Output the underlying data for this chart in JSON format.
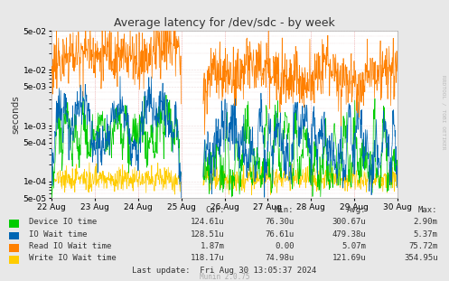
{
  "title": "Average latency for /dev/sdc - by week",
  "ylabel": "seconds",
  "watermark": "RRDTOOL / TOBI OETIKER",
  "munin_version": "Munin 2.0.75",
  "fig_bg_color": "#e8e8e8",
  "plot_bg_color": "#ffffff",
  "x_labels": [
    "22 Aug",
    "23 Aug",
    "24 Aug",
    "25 Aug",
    "26 Aug",
    "27 Aug",
    "28 Aug",
    "29 Aug",
    "30 Aug"
  ],
  "yticks": [
    5e-05,
    0.0001,
    0.0005,
    0.001,
    0.005,
    0.01,
    0.05
  ],
  "ytick_labels": [
    "5e-05",
    "1e-04",
    "5e-04",
    "1e-03",
    "5e-03",
    "1e-02",
    "5e-02"
  ],
  "ymin": 5e-05,
  "ymax": 0.05,
  "legend_colors": [
    "#00cc00",
    "#0066b3",
    "#ff8000",
    "#ffcc00"
  ],
  "legend_labels": [
    "Device IO time",
    "IO Wait time",
    "Read IO Wait time",
    "Write IO Wait time"
  ],
  "table_headers": [
    "Cur:",
    "Min:",
    "Avg:",
    "Max:"
  ],
  "table_rows": [
    [
      "124.61u",
      "76.30u",
      "300.67u",
      "2.90m"
    ],
    [
      "128.51u",
      "76.61u",
      "479.38u",
      "5.37m"
    ],
    [
      "1.87m",
      "0.00",
      "5.07m",
      "75.72m"
    ],
    [
      "118.17u",
      "74.98u",
      "121.69u",
      "354.95u"
    ]
  ],
  "last_update": "Last update:  Fri Aug 30 13:05:37 2024",
  "grid_major_color": "#cccccc",
  "grid_minor_color": "#ddbbbb",
  "vline_color": "#ffaaaa",
  "border_color": "#aaaaaa"
}
